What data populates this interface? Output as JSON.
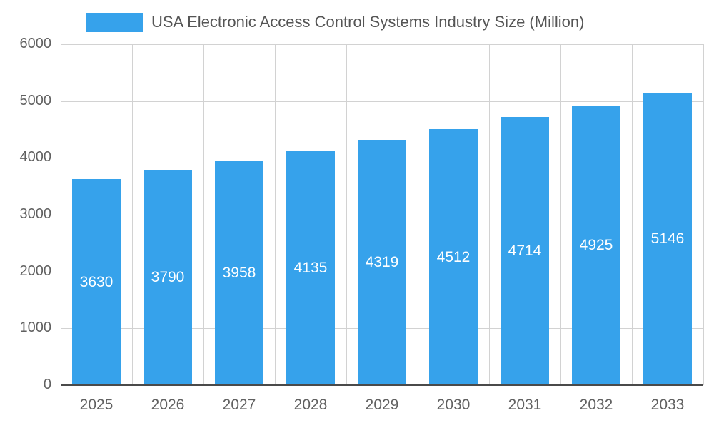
{
  "chart_data": {
    "type": "bar",
    "title": "USA Electronic Access Control Systems Industry Size (Million)",
    "categories": [
      "2025",
      "2026",
      "2027",
      "2028",
      "2029",
      "2030",
      "2031",
      "2032",
      "2033"
    ],
    "values": [
      3630,
      3790,
      3958,
      4135,
      4319,
      4512,
      4714,
      4925,
      5146
    ],
    "xlabel": "",
    "ylabel": "",
    "ylim": [
      0,
      6000
    ],
    "y_ticks": [
      0,
      1000,
      2000,
      3000,
      4000,
      5000,
      6000
    ],
    "grid": true,
    "legend_position": "top",
    "colors": {
      "bar": "#36A2EB",
      "bar_value_label": "#ffffff",
      "axis_text": "#616161",
      "gridline": "#d2d2d2",
      "baseline": "#4a4a4a",
      "legend_text": "#555555"
    }
  }
}
